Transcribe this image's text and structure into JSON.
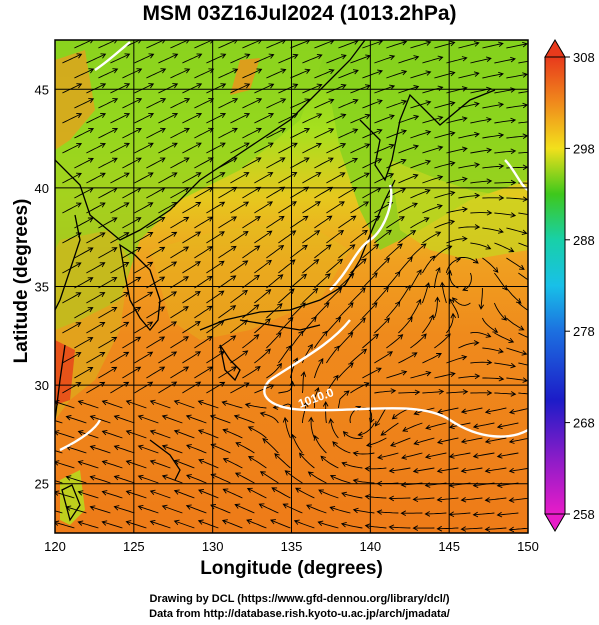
{
  "title": "MSM 03Z16Jul2024 (1013.2hPa)",
  "xlabel": "Longitude (degrees)",
  "ylabel": "Latitude  (degrees)",
  "credits": [
    "Drawing by DCL (https://www.gfd-dennou.org/library/dcl/)",
    "Data from http://database.rish.kyoto-u.ac.jp/arch/jmadata/"
  ],
  "map": {
    "lon_range": [
      120,
      150
    ],
    "lat_range": [
      22.5,
      47.5
    ],
    "lon_ticks": [
      "120",
      "125",
      "130",
      "135",
      "140",
      "145",
      "150"
    ],
    "lat_ticks": [
      "25",
      "30",
      "35",
      "40",
      "45"
    ],
    "contour_label": "1010.0",
    "colors": {
      "land_outline": "#000000",
      "contour": "#ffffff",
      "streamline": "#000000"
    }
  },
  "colorbar": {
    "min": 258,
    "max": 308,
    "labels": [
      "308",
      "298",
      "288",
      "278",
      "268",
      "258"
    ]
  }
}
